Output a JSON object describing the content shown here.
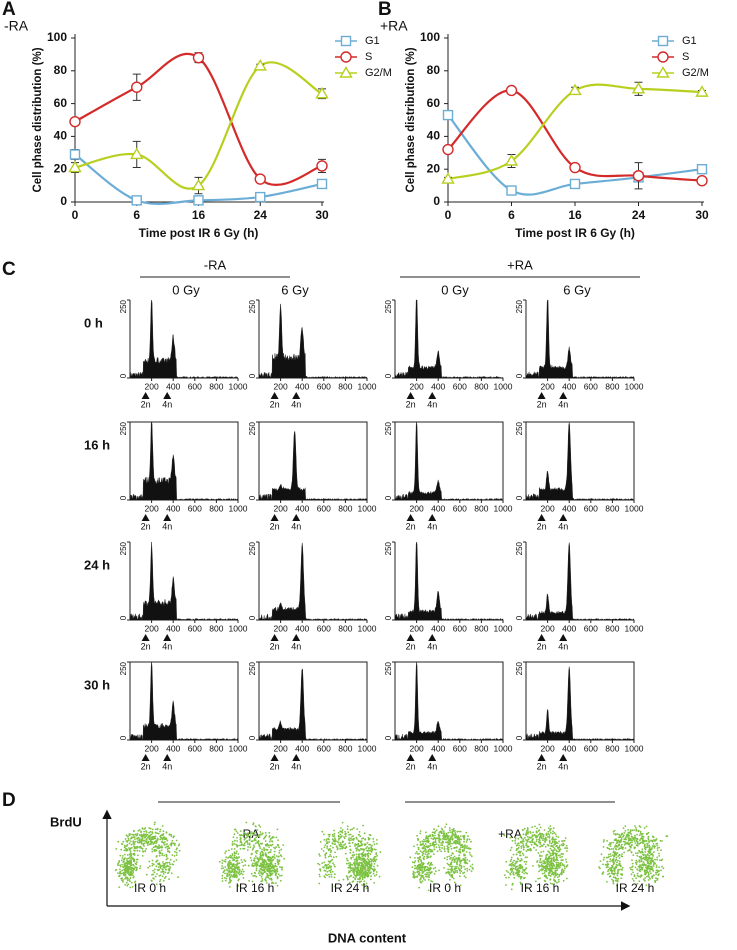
{
  "chart_data": [
    {
      "type": "line",
      "panel_label": "A",
      "condition": "-RA",
      "y_label": "Cell phase distribution (%)",
      "x_label": "Time post IR 6 Gy (h)",
      "categories": [
        "0",
        "6",
        "16",
        "24",
        "30"
      ],
      "ylim": [
        0,
        100
      ],
      "yticks": [
        0,
        20,
        40,
        60,
        80,
        100
      ],
      "legend": "right",
      "series": [
        {
          "name": "G1",
          "color": "#6badd6",
          "marker": "square",
          "values": [
            29,
            1,
            1,
            3,
            11
          ],
          "errors": [
            3,
            1,
            1,
            1,
            1
          ]
        },
        {
          "name": "S",
          "color": "#d42a2a",
          "marker": "circle",
          "values": [
            49,
            70,
            88,
            14,
            22
          ],
          "errors": [
            2,
            8,
            3,
            1,
            4
          ]
        },
        {
          "name": "G2/M",
          "color": "#b8cf1f",
          "marker": "triangle",
          "values": [
            21,
            29,
            10,
            83,
            66
          ],
          "errors": [
            3,
            8,
            5,
            1,
            3
          ]
        }
      ]
    },
    {
      "type": "line",
      "panel_label": "B",
      "condition": "+RA",
      "y_label": "Cell phase distribution (%)",
      "x_label": "Time post IR 6 Gy (h)",
      "categories": [
        "0",
        "6",
        "16",
        "24",
        "30"
      ],
      "ylim": [
        0,
        100
      ],
      "yticks": [
        0,
        20,
        40,
        60,
        80,
        100
      ],
      "legend": "right",
      "series": [
        {
          "name": "G1",
          "color": "#6badd6",
          "marker": "square",
          "values": [
            53,
            7,
            11,
            15,
            20
          ],
          "errors": [
            2,
            2,
            1,
            2,
            1
          ]
        },
        {
          "name": "S",
          "color": "#d42a2a",
          "marker": "circle",
          "values": [
            32,
            68,
            21,
            16,
            13
          ],
          "errors": [
            1,
            1,
            1,
            8,
            1
          ]
        },
        {
          "name": "G2/M",
          "color": "#b8cf1f",
          "marker": "triangle",
          "values": [
            14,
            25,
            68,
            69,
            67
          ],
          "errors": [
            1,
            4,
            2,
            4,
            1
          ]
        }
      ]
    }
  ],
  "panel_c": {
    "label": "C",
    "groups": [
      {
        "name": "-RA",
        "doses": [
          "0 Gy",
          "6 Gy"
        ]
      },
      {
        "name": "+RA",
        "doses": [
          "0 Gy",
          "6 Gy"
        ]
      }
    ],
    "times": [
      "0 h",
      "16 h",
      "24 h",
      "30 h"
    ],
    "ylim": [
      0,
      250
    ],
    "yticks": [
      0,
      250
    ],
    "xlim": [
      0,
      1000
    ],
    "xticks": [
      200,
      400,
      600,
      800,
      1000
    ],
    "markers": [
      "2n",
      "4n"
    ]
  },
  "panel_d": {
    "label": "D",
    "y_label": "BrdU",
    "x_label": "DNA content",
    "groups": [
      {
        "name": "-RA",
        "samples": [
          "IR 0 h",
          "IR 16 h",
          "IR 24 h"
        ]
      },
      {
        "name": "+RA",
        "samples": [
          "IR 0 h",
          "IR 16 h",
          "IR 24 h"
        ]
      }
    ]
  }
}
